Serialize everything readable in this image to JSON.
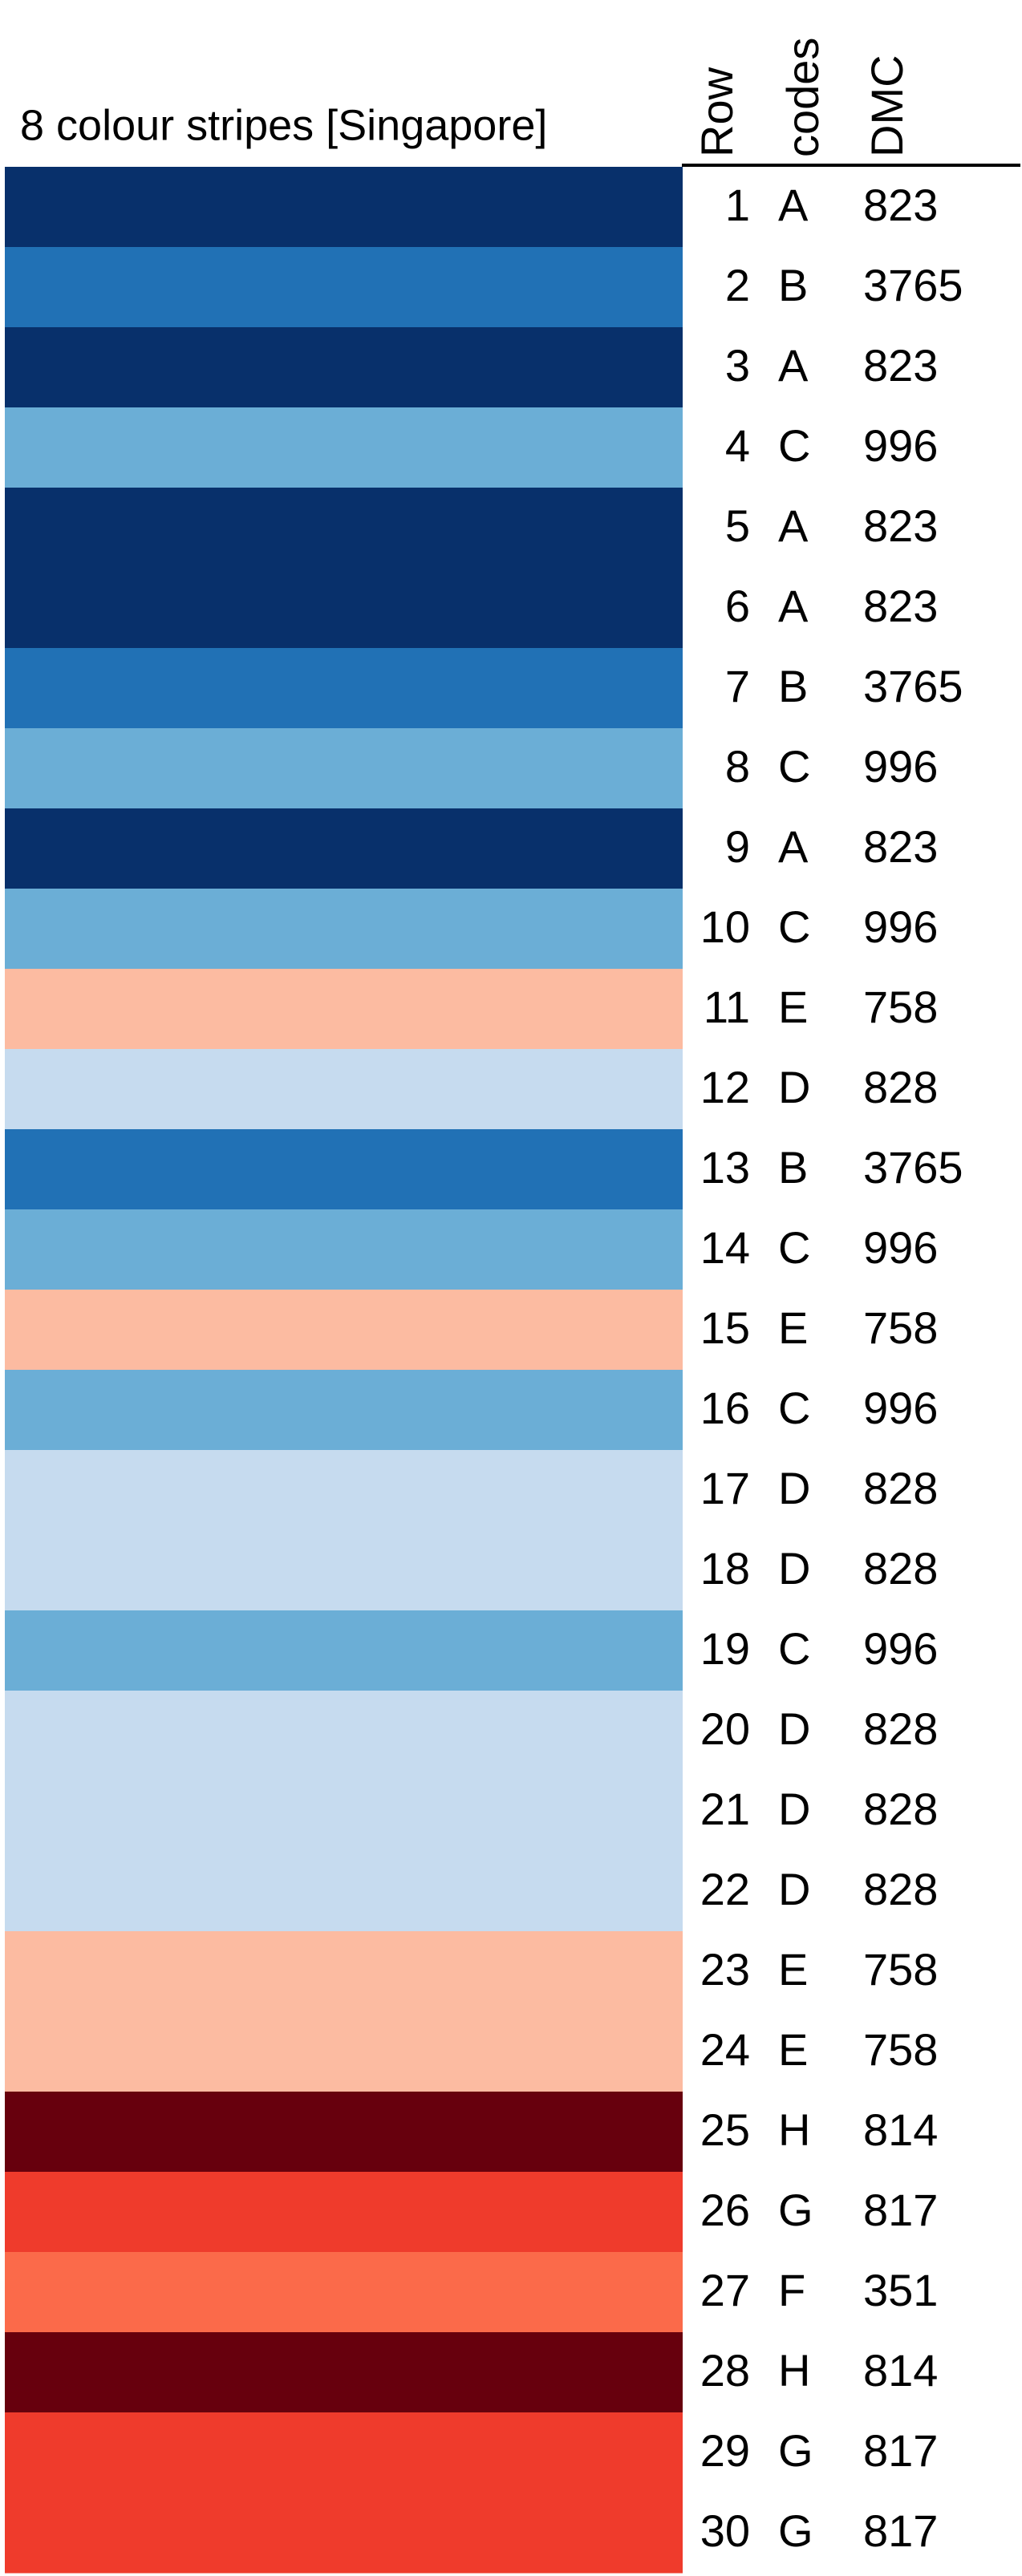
{
  "header": {
    "title": "8 colour stripes [Singapore]",
    "columns": [
      "Row",
      "codes",
      "DMC"
    ]
  },
  "table": {
    "rows": [
      {
        "row": 1,
        "code": "A",
        "dmc": 823,
        "color": "#08306b"
      },
      {
        "row": 2,
        "code": "B",
        "dmc": 3765,
        "color": "#2171b5"
      },
      {
        "row": 3,
        "code": "A",
        "dmc": 823,
        "color": "#08306b"
      },
      {
        "row": 4,
        "code": "C",
        "dmc": 996,
        "color": "#6baed6"
      },
      {
        "row": 5,
        "code": "A",
        "dmc": 823,
        "color": "#08306b"
      },
      {
        "row": 6,
        "code": "A",
        "dmc": 823,
        "color": "#08306b"
      },
      {
        "row": 7,
        "code": "B",
        "dmc": 3765,
        "color": "#2171b5"
      },
      {
        "row": 8,
        "code": "C",
        "dmc": 996,
        "color": "#6baed6"
      },
      {
        "row": 9,
        "code": "A",
        "dmc": 823,
        "color": "#08306b"
      },
      {
        "row": 10,
        "code": "C",
        "dmc": 996,
        "color": "#6baed6"
      },
      {
        "row": 11,
        "code": "E",
        "dmc": 758,
        "color": "#fcbba1"
      },
      {
        "row": 12,
        "code": "D",
        "dmc": 828,
        "color": "#c6dbef"
      },
      {
        "row": 13,
        "code": "B",
        "dmc": 3765,
        "color": "#2171b5"
      },
      {
        "row": 14,
        "code": "C",
        "dmc": 996,
        "color": "#6baed6"
      },
      {
        "row": 15,
        "code": "E",
        "dmc": 758,
        "color": "#fcbba1"
      },
      {
        "row": 16,
        "code": "C",
        "dmc": 996,
        "color": "#6baed6"
      },
      {
        "row": 17,
        "code": "D",
        "dmc": 828,
        "color": "#c6dbef"
      },
      {
        "row": 18,
        "code": "D",
        "dmc": 828,
        "color": "#c6dbef"
      },
      {
        "row": 19,
        "code": "C",
        "dmc": 996,
        "color": "#6baed6"
      },
      {
        "row": 20,
        "code": "D",
        "dmc": 828,
        "color": "#c6dbef"
      },
      {
        "row": 21,
        "code": "D",
        "dmc": 828,
        "color": "#c6dbef"
      },
      {
        "row": 22,
        "code": "D",
        "dmc": 828,
        "color": "#c6dbef"
      },
      {
        "row": 23,
        "code": "E",
        "dmc": 758,
        "color": "#fcbba1"
      },
      {
        "row": 24,
        "code": "E",
        "dmc": 758,
        "color": "#fcbba1"
      },
      {
        "row": 25,
        "code": "H",
        "dmc": 814,
        "color": "#67000d"
      },
      {
        "row": 26,
        "code": "G",
        "dmc": 817,
        "color": "#ef3b2c"
      },
      {
        "row": 27,
        "code": "F",
        "dmc": 351,
        "color": "#fb6a4a"
      },
      {
        "row": 28,
        "code": "H",
        "dmc": 814,
        "color": "#67000d"
      },
      {
        "row": 29,
        "code": "G",
        "dmc": 817,
        "color": "#ef3b2c"
      },
      {
        "row": 30,
        "code": "G",
        "dmc": 817,
        "color": "#ef3b2c"
      }
    ]
  }
}
